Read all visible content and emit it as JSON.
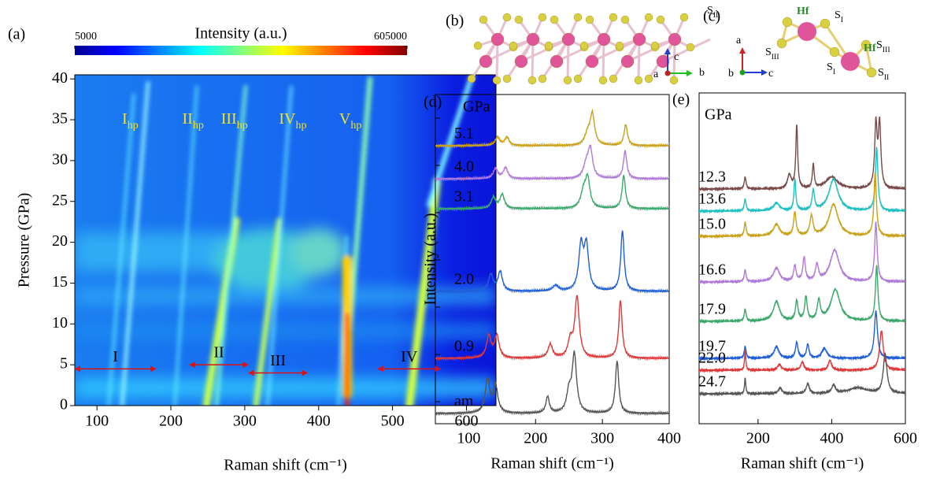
{
  "chart_data": [
    {
      "type": "heatmap",
      "panel": "(a)",
      "xlabel": "Raman shift (cm⁻¹)",
      "ylabel": "Pressure (GPa)",
      "xlim": [
        70,
        640
      ],
      "xticks": [
        100,
        200,
        300,
        400,
        500,
        600
      ],
      "ylim": [
        0,
        40.5
      ],
      "yticks": [
        0,
        5,
        10,
        15,
        20,
        25,
        30,
        35,
        40
      ],
      "colorbar": {
        "label": "Intensity (a.u.)",
        "lim": [
          5000,
          605000
        ],
        "ticks": [
          5000,
          605000
        ]
      },
      "branch_labels": [
        {
          "text": "I",
          "sub": "hp",
          "x": 145,
          "y": 35
        },
        {
          "text": "II",
          "sub": "hp",
          "x": 230,
          "y": 35
        },
        {
          "text": "III",
          "sub": "hp",
          "x": 286,
          "y": 35
        },
        {
          "text": "IV",
          "sub": "hp",
          "x": 365,
          "y": 35
        },
        {
          "text": "V",
          "sub": "hp",
          "x": 443,
          "y": 35
        }
      ],
      "phase_ranges": [
        {
          "text": "I",
          "x": [
            70,
            180
          ],
          "y": 4.5
        },
        {
          "text": "II",
          "x": [
            225,
            305
          ],
          "y": 5
        },
        {
          "text": "III",
          "x": [
            305,
            385
          ],
          "y": 4
        },
        {
          "text": "IV",
          "x": [
            480,
            565
          ],
          "y": 4.5
        }
      ]
    },
    {
      "type": "spectra",
      "panel": "(d)",
      "unit_label": "GPa",
      "xlabel": "Raman shift (cm⁻¹)",
      "ylabel": "Intensity (a.u.)",
      "xlim": [
        50,
        400
      ],
      "xticks": [
        100,
        200,
        300,
        400
      ],
      "series": [
        {
          "name": "5.1",
          "color": "#c9a21a",
          "peaks": [
            [
              143,
              0.15,
              4
            ],
            [
              157,
              0.15,
              4
            ],
            [
              278,
              0.2,
              5
            ],
            [
              285,
              0.55,
              4
            ],
            [
              335,
              0.38,
              3
            ]
          ]
        },
        {
          "name": "4.0",
          "color": "#b07ad8",
          "peaks": [
            [
              140,
              0.18,
              4
            ],
            [
              155,
              0.2,
              4
            ],
            [
              276,
              0.25,
              5
            ],
            [
              282,
              0.5,
              4
            ],
            [
              334,
              0.5,
              3
            ]
          ]
        },
        {
          "name": "3.1",
          "color": "#3aa86a",
          "peaks": [
            [
              137,
              0.2,
              4
            ],
            [
              150,
              0.25,
              4
            ],
            [
              272,
              0.3,
              5
            ],
            [
              278,
              0.5,
              4
            ],
            [
              332,
              0.6,
              3
            ]
          ]
        },
        {
          "name": "2.0",
          "color": "#1f5fd8",
          "peaks": [
            [
              133,
              0.3,
              4
            ],
            [
              147,
              0.35,
              4
            ],
            [
              230,
              0.1,
              5
            ],
            [
              268,
              0.8,
              4
            ],
            [
              276,
              0.8,
              4
            ],
            [
              330,
              1.1,
              3
            ]
          ]
        },
        {
          "name": "0.9",
          "color": "#e03838",
          "peaks": [
            [
              130,
              0.4,
              4
            ],
            [
              142,
              0.4,
              4
            ],
            [
              222,
              0.25,
              4
            ],
            [
              252,
              0.3,
              4
            ],
            [
              262,
              1.1,
              4
            ],
            [
              327,
              1.05,
              3
            ]
          ]
        },
        {
          "name": "am",
          "color": "#555555",
          "peaks": [
            [
              128,
              0.6,
              4
            ],
            [
              140,
              0.5,
              4
            ],
            [
              218,
              0.3,
              3
            ],
            [
              250,
              0.35,
              4
            ],
            [
              258,
              1.05,
              4
            ],
            [
              322,
              0.95,
              3
            ]
          ]
        }
      ]
    },
    {
      "type": "spectra",
      "panel": "(e)",
      "unit_label": "GPa",
      "xlabel": "Raman shift (cm⁻¹)",
      "xlim": [
        40,
        600
      ],
      "xticks": [
        200,
        400,
        600
      ],
      "series": [
        {
          "name": "12.3",
          "color": "#7a4a4a",
          "peaks": [
            [
              165,
              0.3,
              3
            ],
            [
              285,
              0.35,
              6
            ],
            [
              305,
              1.6,
              3
            ],
            [
              350,
              0.6,
              3
            ],
            [
              400,
              0.3,
              20
            ],
            [
              520,
              1.6,
              4
            ],
            [
              530,
              1.6,
              4
            ]
          ]
        },
        {
          "name": "13.6",
          "color": "#20c0c0",
          "peaks": [
            [
              165,
              0.3,
              3
            ],
            [
              250,
              0.2,
              10
            ],
            [
              300,
              0.8,
              3
            ],
            [
              350,
              0.5,
              4
            ],
            [
              405,
              0.8,
              15
            ],
            [
              522,
              1.6,
              4
            ]
          ]
        },
        {
          "name": "15.0",
          "color": "#c9a21a",
          "peaks": [
            [
              165,
              0.35,
              3
            ],
            [
              250,
              0.3,
              10
            ],
            [
              300,
              0.6,
              4
            ],
            [
              345,
              0.5,
              5
            ],
            [
              405,
              0.8,
              15
            ],
            [
              518,
              1.6,
              4
            ]
          ]
        },
        {
          "name": "16.6",
          "color": "#b07ad8",
          "peaks": [
            [
              165,
              0.3,
              3
            ],
            [
              250,
              0.35,
              10
            ],
            [
              300,
              0.4,
              4
            ],
            [
              325,
              0.6,
              4
            ],
            [
              360,
              0.4,
              5
            ],
            [
              408,
              0.8,
              15
            ],
            [
              520,
              1.5,
              4
            ]
          ]
        },
        {
          "name": "17.9",
          "color": "#3aa86a",
          "peaks": [
            [
              165,
              0.3,
              3
            ],
            [
              250,
              0.5,
              10
            ],
            [
              305,
              0.5,
              4
            ],
            [
              330,
              0.6,
              4
            ],
            [
              365,
              0.5,
              5
            ],
            [
              410,
              0.8,
              15
            ],
            [
              522,
              1.4,
              4
            ]
          ]
        },
        {
          "name": "19.7",
          "color": "#1f5fd8",
          "peaks": [
            [
              165,
              0.3,
              3
            ],
            [
              250,
              0.3,
              8
            ],
            [
              305,
              0.4,
              4
            ],
            [
              335,
              0.35,
              4
            ],
            [
              380,
              0.25,
              8
            ],
            [
              520,
              1.2,
              5
            ]
          ]
        },
        {
          "name": "22.0",
          "color": "#e03838",
          "peaks": [
            [
              165,
              0.5,
              2
            ],
            [
              258,
              0.15,
              6
            ],
            [
              320,
              0.2,
              5
            ],
            [
              395,
              0.25,
              5
            ],
            [
              535,
              1.0,
              6
            ]
          ]
        },
        {
          "name": "24.7",
          "color": "#555555",
          "peaks": [
            [
              165,
              0.4,
              2
            ],
            [
              260,
              0.15,
              6
            ],
            [
              335,
              0.25,
              5
            ],
            [
              405,
              0.2,
              6
            ],
            [
              470,
              0.15,
              30
            ],
            [
              545,
              1.0,
              6
            ]
          ]
        }
      ]
    }
  ],
  "structures": {
    "b": {
      "label": "(b)",
      "axes": [
        "c",
        "a",
        "b"
      ]
    },
    "c": {
      "label": "(c)",
      "axes": [
        "a",
        "b",
        "c"
      ],
      "atoms": [
        {
          "text": "S",
          "sub": "II"
        },
        {
          "text": "Hf"
        },
        {
          "text": "S",
          "sub": "I"
        },
        {
          "text": "Hf"
        },
        {
          "text": "S",
          "sub": "III"
        },
        {
          "text": "S",
          "sub": "III"
        },
        {
          "text": "S",
          "sub": "I"
        },
        {
          "text": "S",
          "sub": "II"
        }
      ]
    }
  }
}
